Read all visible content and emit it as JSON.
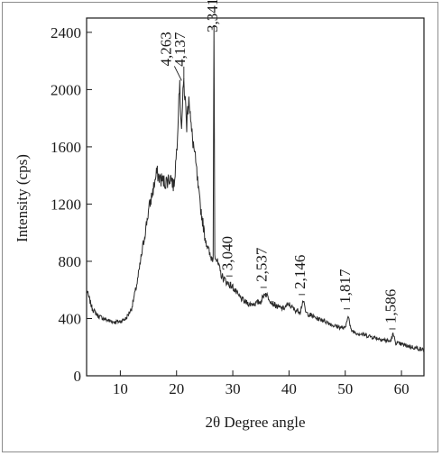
{
  "chart_data": {
    "type": "line",
    "title": "",
    "xlabel": "2θ Degree angle",
    "ylabel": "Intensity (cps)",
    "xlim": [
      4,
      64
    ],
    "ylim": [
      0,
      2500
    ],
    "xticks": [
      10,
      20,
      30,
      40,
      50,
      60
    ],
    "yticks": [
      0,
      400,
      800,
      1200,
      1600,
      2000,
      2400
    ],
    "grid": false,
    "legend": "none",
    "line_color": "#2a2a2a",
    "series": [
      {
        "x": [
          4,
          5,
          6,
          7,
          8,
          9,
          10,
          11,
          12,
          13,
          14,
          15,
          16,
          16.5,
          17,
          18,
          19,
          19.5,
          20,
          20.5,
          20.9,
          21.3,
          21.8,
          22.2,
          22.6,
          23,
          23.5,
          24,
          25,
          26,
          26.5,
          26.65,
          26.8,
          27.2,
          28,
          29,
          30,
          31,
          32,
          33,
          34,
          35,
          35.7,
          36.5,
          37,
          38,
          39,
          40,
          41,
          42,
          42.5,
          43,
          44,
          45,
          46,
          47,
          48,
          49,
          50,
          50.5,
          51,
          52,
          53,
          54,
          55,
          56,
          57,
          58,
          58.5,
          59,
          60,
          61,
          62,
          63,
          64
        ],
        "y": [
          600,
          470,
          420,
          400,
          385,
          375,
          380,
          400,
          470,
          650,
          900,
          1150,
          1330,
          1420,
          1380,
          1350,
          1390,
          1320,
          1560,
          2050,
          1750,
          2060,
          1760,
          1980,
          1720,
          1620,
          1450,
          1250,
          980,
          830,
          820,
          2450,
          860,
          800,
          700,
          650,
          620,
          560,
          520,
          500,
          505,
          520,
          580,
          540,
          510,
          480,
          470,
          500,
          460,
          450,
          530,
          440,
          420,
          400,
          390,
          370,
          350,
          340,
          330,
          430,
          320,
          300,
          290,
          280,
          270,
          260,
          250,
          240,
          290,
          230,
          220,
          210,
          200,
          190,
          180
        ]
      }
    ],
    "peak_labels": [
      {
        "label": "4,263",
        "x": 20.9,
        "y": 2050
      },
      {
        "label": "4,137",
        "x": 21.3,
        "y": 2060
      },
      {
        "label": "3,341",
        "x": 26.65,
        "y": 2450
      },
      {
        "label": "3,040",
        "x": 29.3,
        "y": 660
      },
      {
        "label": "2,537",
        "x": 35.4,
        "y": 580
      },
      {
        "label": "2,146",
        "x": 42.2,
        "y": 530
      },
      {
        "label": "1,817",
        "x": 50.2,
        "y": 430
      },
      {
        "label": "1,586",
        "x": 58.3,
        "y": 290
      }
    ]
  }
}
